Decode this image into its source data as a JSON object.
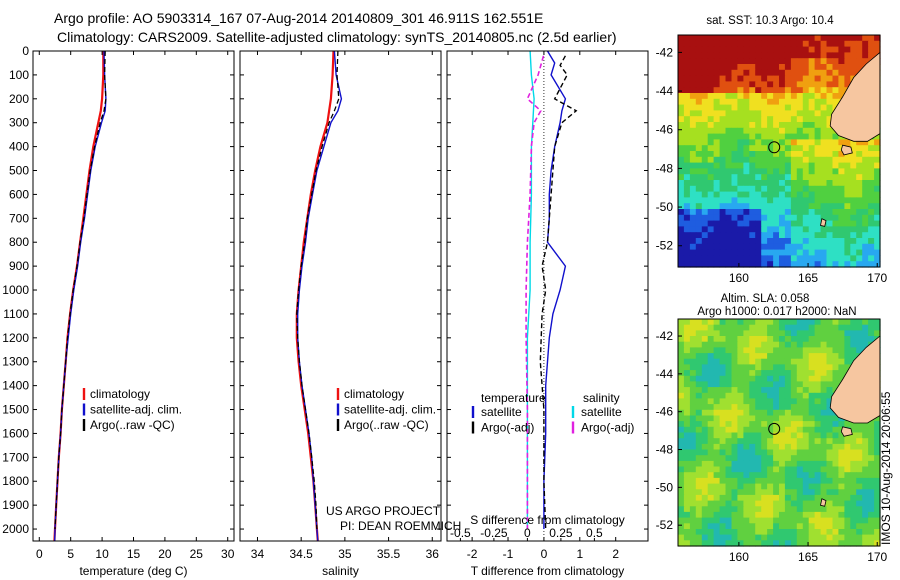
{
  "header": {
    "line1": "Argo profile: AO 5903314_167 07-Aug-2014 20140809_301 46.911S 162.551E",
    "line2": "Climatology: CARS2009. Satellite-adjusted climatology: synTS_20140805.nc (2.5d earlier)"
  },
  "side_label": "IMOS 10-Aug-2014 20:06:55",
  "colors": {
    "climatology": "#ee1111",
    "satellite": "#1010cc",
    "argo": "#000000",
    "cyan": "#00d8e8",
    "magenta": "#e020e0",
    "land": "#f6c6a0"
  },
  "chart_data": [
    {
      "type": "line",
      "ylim": [
        2050,
        0
      ],
      "yticks": [
        0,
        100,
        200,
        300,
        400,
        500,
        600,
        700,
        800,
        900,
        1000,
        1100,
        1200,
        1300,
        1400,
        1500,
        1600,
        1700,
        1800,
        1900,
        2000
      ],
      "xlim": [
        -1,
        31
      ],
      "xticks": [
        0,
        5,
        10,
        15,
        20,
        25,
        30
      ],
      "xlabel": "temperature (deg C)",
      "legend": [
        "climatology",
        "satellite-adj. clim.",
        "Argo(..raw -QC)"
      ],
      "series": [
        {
          "name": "climatology",
          "color": "#ee1111",
          "width": 2.2,
          "dash": "",
          "points": [
            [
              10.2,
              0
            ],
            [
              10.2,
              100
            ],
            [
              10.0,
              200
            ],
            [
              9.8,
              250
            ],
            [
              9.4,
              300
            ],
            [
              8.6,
              400
            ],
            [
              8.0,
              500
            ],
            [
              7.5,
              600
            ],
            [
              7.0,
              700
            ],
            [
              6.5,
              800
            ],
            [
              6.0,
              900
            ],
            [
              5.4,
              1000
            ],
            [
              4.9,
              1100
            ],
            [
              4.5,
              1200
            ],
            [
              4.2,
              1300
            ],
            [
              3.9,
              1400
            ],
            [
              3.6,
              1500
            ],
            [
              3.4,
              1600
            ],
            [
              3.1,
              1700
            ],
            [
              2.9,
              1800
            ],
            [
              2.7,
              1900
            ],
            [
              2.5,
              2000
            ],
            [
              2.4,
              2050
            ]
          ]
        },
        {
          "name": "satellite-adj. clim.",
          "color": "#1010cc",
          "width": 1.4,
          "dash": "",
          "points": [
            [
              10.3,
              0
            ],
            [
              10.4,
              100
            ],
            [
              10.6,
              200
            ],
            [
              10.5,
              250
            ],
            [
              9.9,
              300
            ],
            [
              8.9,
              400
            ],
            [
              8.2,
              500
            ],
            [
              7.7,
              600
            ],
            [
              7.2,
              700
            ],
            [
              6.6,
              800
            ],
            [
              6.1,
              900
            ],
            [
              5.5,
              1000
            ],
            [
              5.0,
              1100
            ],
            [
              4.6,
              1200
            ],
            [
              4.2,
              1300
            ],
            [
              3.9,
              1400
            ],
            [
              3.6,
              1500
            ],
            [
              3.4,
              1600
            ],
            [
              3.1,
              1700
            ],
            [
              2.9,
              1800
            ],
            [
              2.7,
              1900
            ],
            [
              2.5,
              2000
            ],
            [
              2.45,
              2050
            ]
          ]
        },
        {
          "name": "Argo(..raw -QC)",
          "color": "#000000",
          "width": 1.3,
          "dash": "5,3",
          "points": [
            [
              10.5,
              0
            ],
            [
              10.4,
              100
            ],
            [
              10.6,
              200
            ],
            [
              10.3,
              250
            ],
            [
              9.7,
              300
            ],
            [
              8.8,
              400
            ],
            [
              8.1,
              500
            ],
            [
              7.6,
              600
            ],
            [
              7.1,
              700
            ],
            [
              6.5,
              800
            ],
            [
              6.0,
              900
            ],
            [
              5.4,
              1000
            ],
            [
              4.9,
              1100
            ],
            [
              4.5,
              1200
            ],
            [
              4.2,
              1300
            ],
            [
              3.9,
              1400
            ],
            [
              3.6,
              1500
            ],
            [
              3.4,
              1600
            ],
            [
              3.1,
              1700
            ],
            [
              2.9,
              1800
            ],
            [
              2.7,
              1900
            ],
            [
              2.5,
              2000
            ]
          ]
        }
      ]
    },
    {
      "type": "line",
      "ylim": [
        2050,
        0
      ],
      "xlim": [
        33.8,
        36.1
      ],
      "xticks": [
        34,
        34.5,
        35,
        35.5,
        36
      ],
      "xlabel": "salinity",
      "legend": [
        "climatology",
        "satellite-adj. clim.",
        "Argo(..raw -QC)"
      ],
      "annotation": [
        "US ARGO PROJECT",
        "PI: DEAN ROEMMICH"
      ],
      "series": [
        {
          "name": "climatology",
          "color": "#ee1111",
          "width": 2.2,
          "dash": "",
          "points": [
            [
              34.87,
              0
            ],
            [
              34.86,
              100
            ],
            [
              34.84,
              200
            ],
            [
              34.8,
              300
            ],
            [
              34.72,
              400
            ],
            [
              34.66,
              500
            ],
            [
              34.61,
              600
            ],
            [
              34.57,
              700
            ],
            [
              34.53,
              800
            ],
            [
              34.5,
              900
            ],
            [
              34.47,
              1000
            ],
            [
              34.45,
              1100
            ],
            [
              34.45,
              1200
            ],
            [
              34.47,
              1300
            ],
            [
              34.5,
              1400
            ],
            [
              34.54,
              1500
            ],
            [
              34.58,
              1600
            ],
            [
              34.61,
              1700
            ],
            [
              34.64,
              1800
            ],
            [
              34.66,
              1900
            ],
            [
              34.68,
              2000
            ],
            [
              34.69,
              2050
            ]
          ]
        },
        {
          "name": "satellite-adj. clim.",
          "color": "#1010cc",
          "width": 1.4,
          "dash": "",
          "points": [
            [
              34.88,
              0
            ],
            [
              34.9,
              100
            ],
            [
              34.96,
              200
            ],
            [
              34.92,
              250
            ],
            [
              34.84,
              300
            ],
            [
              34.76,
              400
            ],
            [
              34.68,
              500
            ],
            [
              34.63,
              600
            ],
            [
              34.58,
              700
            ],
            [
              34.55,
              800
            ],
            [
              34.51,
              900
            ],
            [
              34.48,
              1000
            ],
            [
              34.46,
              1100
            ],
            [
              34.46,
              1200
            ],
            [
              34.48,
              1300
            ],
            [
              34.51,
              1400
            ],
            [
              34.55,
              1500
            ],
            [
              34.59,
              1600
            ],
            [
              34.62,
              1700
            ],
            [
              34.64,
              1800
            ],
            [
              34.66,
              1900
            ],
            [
              34.68,
              2000
            ],
            [
              34.69,
              2050
            ]
          ]
        },
        {
          "name": "Argo(..raw -QC)",
          "color": "#000000",
          "width": 1.3,
          "dash": "5,3",
          "points": [
            [
              34.92,
              0
            ],
            [
              34.91,
              100
            ],
            [
              34.93,
              200
            ],
            [
              34.88,
              250
            ],
            [
              34.82,
              300
            ],
            [
              34.74,
              400
            ],
            [
              34.67,
              500
            ],
            [
              34.62,
              600
            ],
            [
              34.57,
              700
            ],
            [
              34.54,
              800
            ],
            [
              34.5,
              900
            ],
            [
              34.47,
              1000
            ],
            [
              34.45,
              1100
            ],
            [
              34.46,
              1200
            ],
            [
              34.48,
              1300
            ],
            [
              34.51,
              1400
            ],
            [
              34.55,
              1500
            ],
            [
              34.59,
              1600
            ],
            [
              34.62,
              1700
            ],
            [
              34.65,
              1800
            ],
            [
              34.67,
              1900
            ],
            [
              34.68,
              2000
            ]
          ]
        }
      ]
    },
    {
      "type": "line",
      "ylim": [
        2050,
        0
      ],
      "xlim": [
        -2.7,
        2.9
      ],
      "xticks": [
        -2,
        -1,
        0,
        1,
        2
      ],
      "xlabel": "T difference from climatology",
      "top_xlim": [
        -0.6,
        0.9
      ],
      "top_xticks": [
        -0.5,
        -0.25,
        0,
        0.25,
        0.5
      ],
      "top_xticklabels": [
        "-0.5",
        "-0.25",
        "0",
        "0.25",
        "0.5"
      ],
      "top_xlabel": "S difference from climatology",
      "legend_groups": [
        {
          "title": "temperature",
          "items": [
            "satellite",
            "Argo(-adj)"
          ]
        },
        {
          "title": "salinity",
          "items": [
            "satellite",
            "Argo(-adj)"
          ]
        }
      ],
      "series": [
        {
          "name": "T satellite",
          "color": "#1010cc",
          "width": 1.4,
          "dash": "",
          "axis": "bottom",
          "points": [
            [
              0.1,
              0
            ],
            [
              0.3,
              50
            ],
            [
              0.2,
              100
            ],
            [
              0.6,
              200
            ],
            [
              0.5,
              250
            ],
            [
              0.45,
              300
            ],
            [
              0.3,
              400
            ],
            [
              0.2,
              500
            ],
            [
              0.15,
              600
            ],
            [
              0.15,
              700
            ],
            [
              0.1,
              800
            ],
            [
              0.6,
              900
            ],
            [
              0.45,
              1000
            ],
            [
              0.25,
              1100
            ],
            [
              0.15,
              1200
            ],
            [
              0.05,
              1400
            ],
            [
              0.05,
              1600
            ],
            [
              0.0,
              1800
            ],
            [
              0.0,
              2000
            ]
          ]
        },
        {
          "name": "T Argo(-adj)",
          "color": "#000000",
          "width": 1.4,
          "dash": "5,3",
          "axis": "bottom",
          "points": [
            [
              0.6,
              20
            ],
            [
              0.45,
              60
            ],
            [
              0.65,
              100
            ],
            [
              0.3,
              200
            ],
            [
              0.9,
              250
            ],
            [
              0.5,
              300
            ],
            [
              0.3,
              400
            ],
            [
              0.25,
              500
            ],
            [
              0.2,
              600
            ],
            [
              0.1,
              800
            ],
            [
              -0.05,
              900
            ],
            [
              0.05,
              1000
            ],
            [
              -0.05,
              1100
            ],
            [
              -0.1,
              1300
            ],
            [
              0.0,
              1500
            ],
            [
              0.0,
              1800
            ],
            [
              0.05,
              2000
            ]
          ]
        },
        {
          "name": "S satellite",
          "color": "#00d8e8",
          "width": 1.4,
          "dash": "",
          "axis": "top",
          "points": [
            [
              0.02,
              0
            ],
            [
              0.03,
              100
            ],
            [
              0.05,
              200
            ],
            [
              0.04,
              300
            ],
            [
              0.03,
              400
            ],
            [
              0.03,
              600
            ],
            [
              0.02,
              800
            ],
            [
              0.02,
              1000
            ],
            [
              0.0,
              1200
            ],
            [
              0.0,
              1500
            ],
            [
              0.0,
              1800
            ],
            [
              0.0,
              2000
            ]
          ]
        },
        {
          "name": "S Argo(-adj)",
          "color": "#e020e0",
          "width": 1.6,
          "dash": "5,3",
          "axis": "top",
          "points": [
            [
              0.12,
              20
            ],
            [
              0.08,
              100
            ],
            [
              0.0,
              200
            ],
            [
              0.1,
              250
            ],
            [
              0.05,
              300
            ],
            [
              0.03,
              400
            ],
            [
              0.02,
              600
            ],
            [
              0.0,
              800
            ],
            [
              -0.01,
              1000
            ],
            [
              -0.01,
              1200
            ],
            [
              0.0,
              1500
            ],
            [
              0.0,
              2000
            ]
          ]
        }
      ]
    },
    {
      "type": "heatmap",
      "title": "sat. SST: 10.3 Argo: 10.4",
      "xlim": [
        155.6,
        170.2
      ],
      "ylim": [
        -53.1,
        -41.1
      ],
      "xticks": [
        160,
        165,
        170
      ],
      "yticks": [
        -42,
        -44,
        -46,
        -48,
        -50,
        -52
      ],
      "marker": {
        "lon": 162.55,
        "lat": -46.91
      },
      "palette": [
        "#1a1aa8",
        "#1e5de0",
        "#28a8f0",
        "#2ee0c4",
        "#30c870",
        "#50d040",
        "#a6e020",
        "#f0e020",
        "#f0a010",
        "#e05010",
        "#a81010"
      ],
      "land_color": "#f6c6a0"
    },
    {
      "type": "heatmap",
      "title": "Altim. SLA: 0.058",
      "subtitle": "Argo h1000: 0.017 h2000: NaN",
      "xlim": [
        155.6,
        170.2
      ],
      "ylim": [
        -53.1,
        -41.1
      ],
      "xticks": [
        160,
        165,
        170
      ],
      "yticks": [
        -42,
        -44,
        -46,
        -48,
        -50,
        -52
      ],
      "marker": {
        "lon": 162.55,
        "lat": -46.91
      },
      "palette": [
        "#1e8fd0",
        "#22b8b0",
        "#30c870",
        "#60d040",
        "#a0e030",
        "#d8e020"
      ],
      "land_color": "#f6c6a0"
    }
  ]
}
